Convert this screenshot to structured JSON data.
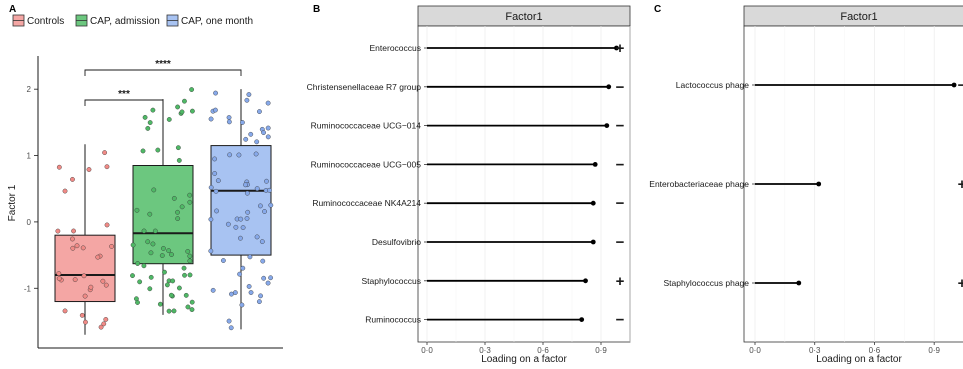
{
  "colors": {
    "controls": "#f4a6a4",
    "controls_point": "#f08a86",
    "admission": "#6cc77f",
    "admission_point": "#4fb866",
    "one_month": "#a8c3f2",
    "one_month_point": "#87a9ea",
    "strip": "#d9d9d9",
    "grid": "#ebebeb"
  },
  "chart_data": [
    {
      "panel": "A",
      "type": "box",
      "ylabel": "Factor 1",
      "ylim": [
        -1.9,
        2.5
      ],
      "yticks": [
        -1,
        0,
        1,
        2
      ],
      "legend": [
        "Controls",
        "CAP, admission",
        "CAP, one month"
      ],
      "legend_position": "top",
      "groups": [
        {
          "name": "Controls",
          "color_key": "controls",
          "min": -1.7,
          "q1": -1.2,
          "median": -0.8,
          "q3": -0.2,
          "max": 1.17
        },
        {
          "name": "CAP, admission",
          "color_key": "admission",
          "min": -1.4,
          "q1": -0.63,
          "median": -0.17,
          "q3": 0.85,
          "max": 1.85
        },
        {
          "name": "CAP, one month",
          "color_key": "one_month",
          "min": -1.62,
          "q1": -0.5,
          "median": 0.47,
          "q3": 1.15,
          "max": 2.0
        }
      ],
      "significance": [
        {
          "from": 0,
          "to": 1,
          "label": "***"
        },
        {
          "from": 0,
          "to": 2,
          "label": "****"
        }
      ]
    },
    {
      "panel": "B",
      "type": "lollipop",
      "strip_title": "Factor1",
      "xlabel": "Loading on a factor",
      "xlim": [
        0,
        1.05
      ],
      "xticks": [
        0,
        0.3,
        0.6,
        0.9
      ],
      "xtick_labels": [
        "0·0",
        "0·3",
        "0·6",
        "0·9"
      ],
      "categories": [
        "Enterococcus",
        "Christensenellaceae R7 group",
        "Ruminococcaceae UCG−014",
        "Ruminococcaceae UCG−005",
        "Ruminococcaceae NK4A214",
        "Desulfovibrio",
        "Staphylococcus",
        "Ruminococcus"
      ],
      "values": [
        0.98,
        0.94,
        0.93,
        0.87,
        0.86,
        0.86,
        0.82,
        0.8
      ],
      "signs": [
        "+",
        "−",
        "−",
        "−",
        "−",
        "−",
        "+",
        "−"
      ]
    },
    {
      "panel": "C",
      "type": "lollipop",
      "strip_title": "Factor1",
      "xlabel": "Loading on a factor",
      "xlim": [
        0,
        1.1
      ],
      "xticks": [
        0,
        0.3,
        0.6,
        0.9
      ],
      "xtick_labels": [
        "0·0",
        "0·3",
        "0·6",
        "0·9"
      ],
      "categories": [
        "Lactococcus phage",
        "Enterobacteriaceae phage",
        "Staphylococcus phage"
      ],
      "values": [
        1.0,
        0.32,
        0.22
      ],
      "signs": [
        "−",
        "+",
        "+"
      ]
    }
  ]
}
